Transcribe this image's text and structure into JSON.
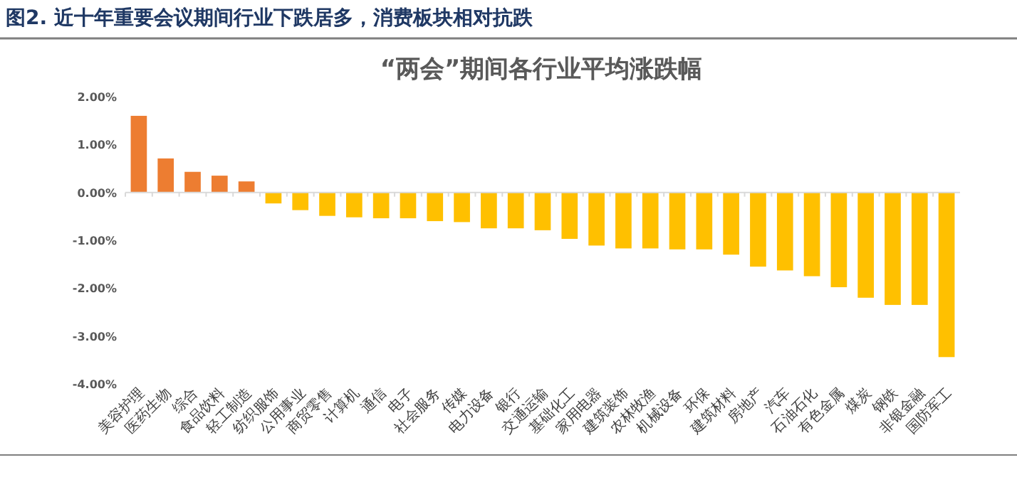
{
  "chart_data": {
    "type": "bar",
    "title": "“两会”期间各行业平均涨跌幅",
    "annotations": [
      "图2. 近十年重要会议期间行业下跌居多，消费板块相对抗跌"
    ],
    "categories": [
      "美容护理",
      "医药生物",
      "综合",
      "食品饮料",
      "轻工制造",
      "纺织服饰",
      "公用事业",
      "商贸零售",
      "计算机",
      "通信",
      "电子",
      "社会服务",
      "传媒",
      "电力设备",
      "银行",
      "交通运输",
      "基础化工",
      "家用电器",
      "建筑装饰",
      "农林牧渔",
      "机械设备",
      "环保",
      "建筑材料",
      "房地产",
      "汽车",
      "石油石化",
      "有色金属",
      "煤炭",
      "钢铁",
      "非银金融",
      "国防军工"
    ],
    "values": [
      1.6,
      0.71,
      0.43,
      0.35,
      0.23,
      -0.23,
      -0.37,
      -0.49,
      -0.52,
      -0.54,
      -0.54,
      -0.6,
      -0.62,
      -0.75,
      -0.75,
      -0.79,
      -0.97,
      -1.11,
      -1.17,
      -1.17,
      -1.19,
      -1.19,
      -1.3,
      -1.55,
      -1.63,
      -1.75,
      -1.98,
      -2.2,
      -2.35,
      -2.35,
      -3.44
    ],
    "colors": [
      "#ed7d31",
      "#ed7d31",
      "#ed7d31",
      "#ed7d31",
      "#ed7d31",
      "#ffc000",
      "#ffc000",
      "#ffc000",
      "#ffc000",
      "#ffc000",
      "#ffc000",
      "#ffc000",
      "#ffc000",
      "#ffc000",
      "#ffc000",
      "#ffc000",
      "#ffc000",
      "#ffc000",
      "#ffc000",
      "#ffc000",
      "#ffc000",
      "#ffc000",
      "#ffc000",
      "#ffc000",
      "#ffc000",
      "#ffc000",
      "#ffc000",
      "#ffc000",
      "#ffc000",
      "#ffc000",
      "#ffc000"
    ],
    "ylim": [
      -4,
      2
    ],
    "yticks": [
      {
        "value": 2,
        "label": "2.00%"
      },
      {
        "value": 1,
        "label": "1.00%"
      },
      {
        "value": 0,
        "label": "0.00%"
      },
      {
        "value": -1,
        "label": "-1.00%"
      },
      {
        "value": -2,
        "label": "-2.00%"
      },
      {
        "value": -3,
        "label": "-3.00%"
      },
      {
        "value": -4,
        "label": "-4.00%"
      }
    ],
    "data_labels": false
  }
}
